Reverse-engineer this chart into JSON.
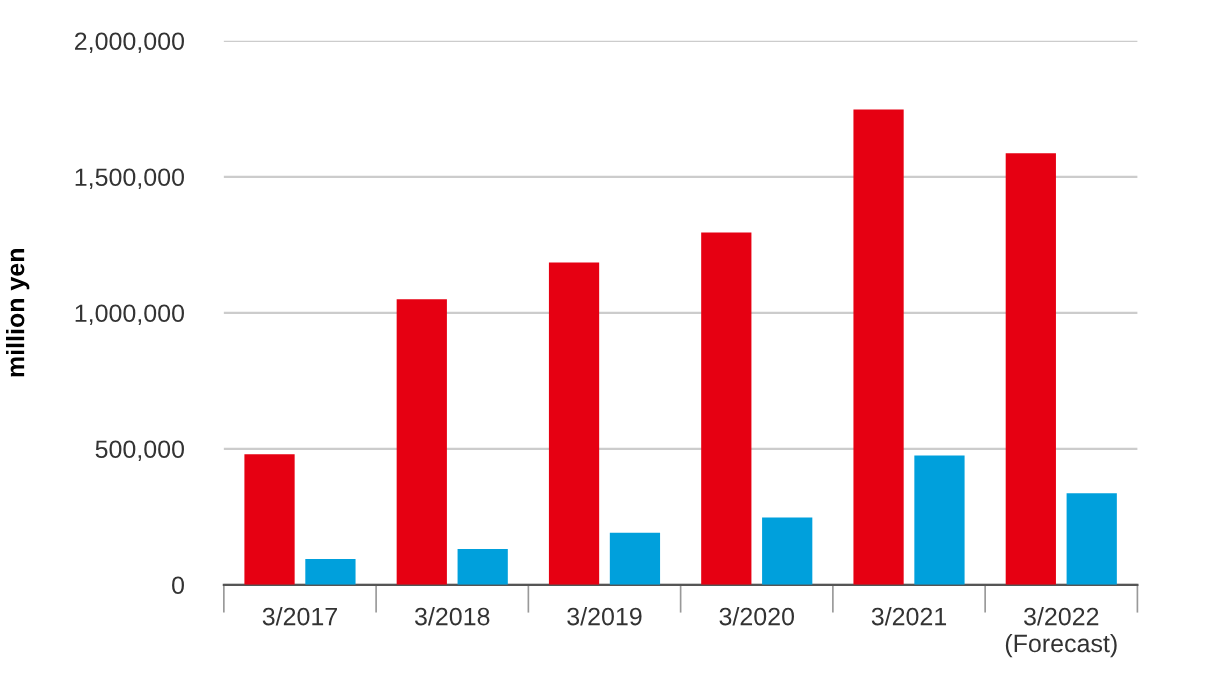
{
  "chart_data": {
    "type": "bar",
    "ylabel": "million yen",
    "categories": [
      "3/2017",
      "3/2018",
      "3/2019",
      "3/2020",
      "3/2021",
      "3/2022\n(Forecast)"
    ],
    "series": [
      {
        "color": "#e60012",
        "values": [
          480000,
          1050000,
          1185000,
          1295000,
          1747000,
          1587000
        ]
      },
      {
        "color": "#00a0dc",
        "values": [
          95000,
          132000,
          191000,
          247000,
          475000,
          337000
        ]
      }
    ],
    "ylim": [
      0,
      2000000
    ],
    "yticks": [
      {
        "value": 0,
        "label": "0"
      },
      {
        "value": 500000,
        "label": "500,000"
      },
      {
        "value": 1000000,
        "label": "1,000,000"
      },
      {
        "value": 1500000,
        "label": "1,500,000"
      },
      {
        "value": 2000000,
        "label": "2,000,000"
      }
    ],
    "grid": "y",
    "legend": false
  }
}
